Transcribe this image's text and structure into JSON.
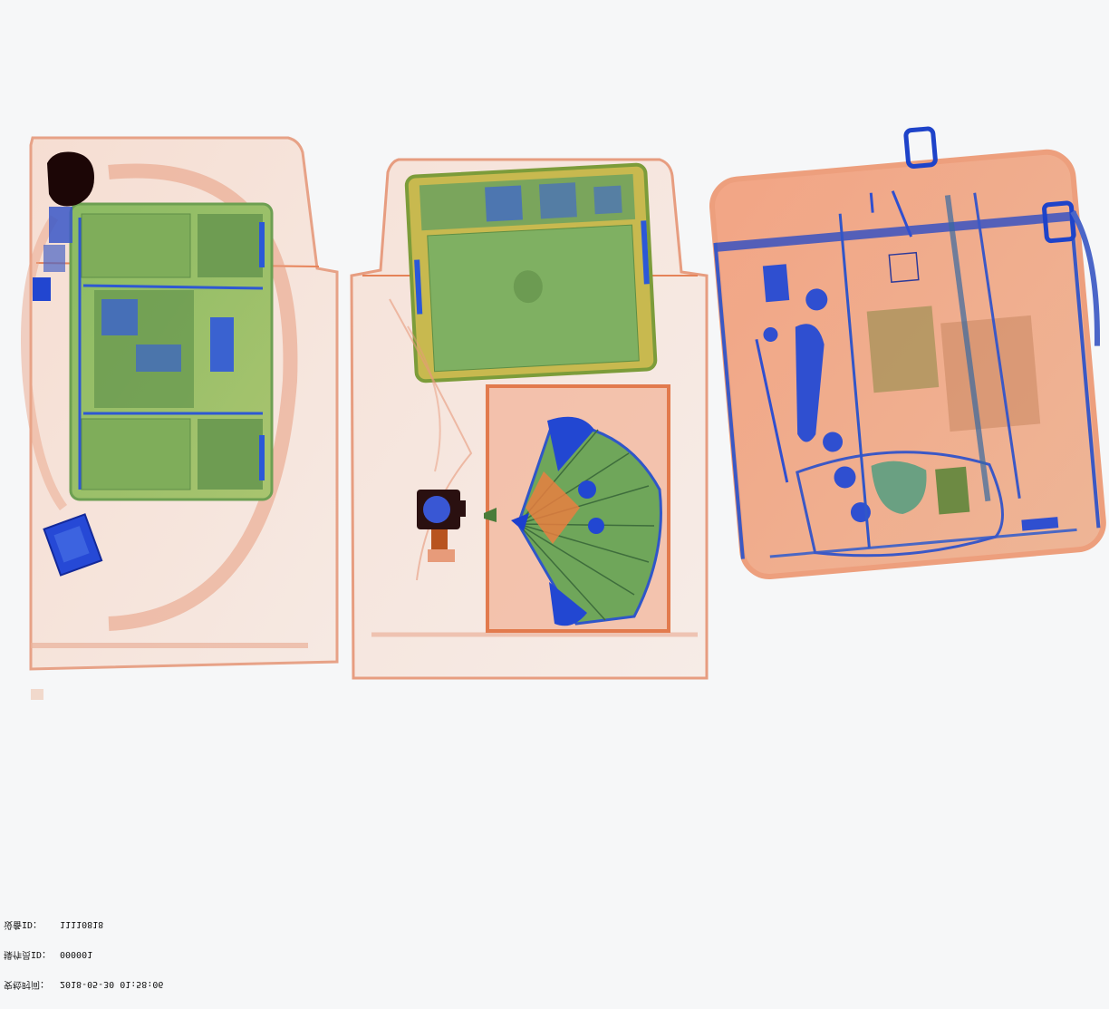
{
  "image": {
    "description_tag": "x-ray-baggage-scan",
    "palette": {
      "background": "#f6f7f8",
      "organic": "#e77a4a",
      "organic_light": "#f2b89c",
      "mixed": "#7fae5a",
      "metal": "#2a56d6",
      "dense": "#1a0a0a"
    }
  },
  "caption": {
    "time_label": "安检时间：",
    "time_value": "2018-05-30 01:58:06",
    "operator_label": "操作员ID：",
    "operator_value": "000001",
    "device_label": "设备ID：",
    "device_value": "11110818"
  }
}
